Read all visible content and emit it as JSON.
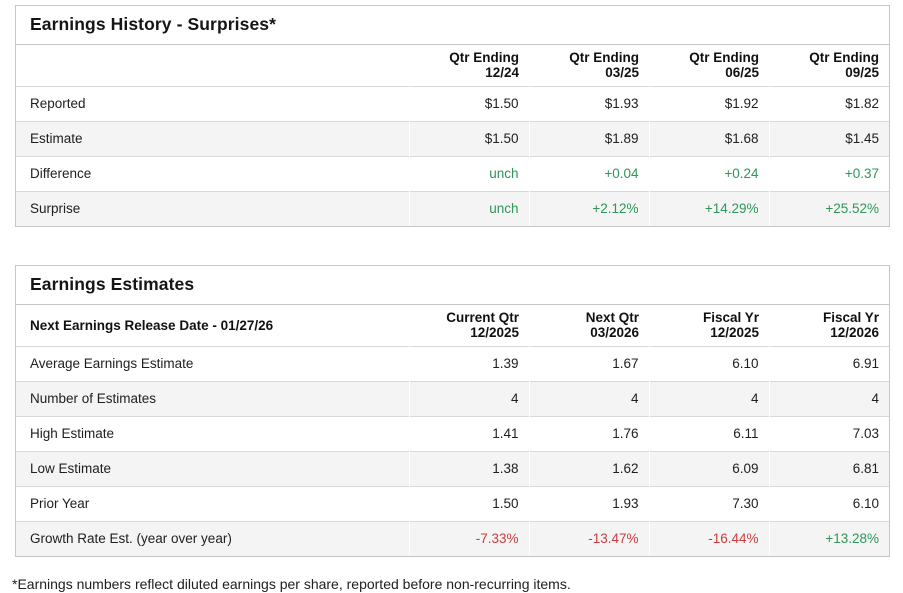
{
  "colors": {
    "accent_green": "#2e9659",
    "accent_red": "#cc3d3d",
    "row_alt": "#f4f4f4",
    "border": "#c6c6c6",
    "row_line": "#d8d8d8",
    "text": "#202020"
  },
  "tables": [
    {
      "title": "Earnings History - Surprises*",
      "header_label": "",
      "columns": [
        "Qtr Ending\n12/24",
        "Qtr Ending\n03/25",
        "Qtr Ending\n06/25",
        "Qtr Ending\n09/25"
      ],
      "rows": [
        {
          "label": "Reported",
          "values": [
            "$1.50",
            "$1.93",
            "$1.92",
            "$1.82"
          ]
        },
        {
          "label": "Estimate",
          "values": [
            "$1.50",
            "$1.89",
            "$1.68",
            "$1.45"
          ]
        },
        {
          "label": "Difference",
          "values": [
            "unch",
            "+0.04",
            "+0.24",
            "+0.37"
          ],
          "value_colors": [
            "green",
            "green",
            "green",
            "green"
          ]
        },
        {
          "label": "Surprise",
          "values": [
            "unch",
            "+2.12%",
            "+14.29%",
            "+25.52%"
          ],
          "value_colors": [
            "green",
            "green",
            "green",
            "green"
          ]
        }
      ]
    },
    {
      "title": "Earnings Estimates",
      "header_label": "Next Earnings Release Date - 01/27/26",
      "columns": [
        "Current Qtr\n12/2025",
        "Next Qtr\n03/2026",
        "Fiscal Yr\n12/2025",
        "Fiscal Yr\n12/2026"
      ],
      "rows": [
        {
          "label": "Average Earnings Estimate",
          "values": [
            "1.39",
            "1.67",
            "6.10",
            "6.91"
          ]
        },
        {
          "label": "Number of Estimates",
          "values": [
            "4",
            "4",
            "4",
            "4"
          ]
        },
        {
          "label": "High Estimate",
          "values": [
            "1.41",
            "1.76",
            "6.11",
            "7.03"
          ]
        },
        {
          "label": "Low Estimate",
          "values": [
            "1.38",
            "1.62",
            "6.09",
            "6.81"
          ]
        },
        {
          "label": "Prior Year",
          "values": [
            "1.50",
            "1.93",
            "7.30",
            "6.10"
          ]
        },
        {
          "label": "Growth Rate Est. (year over year)",
          "values": [
            "-7.33%",
            "-13.47%",
            "-16.44%",
            "+13.28%"
          ],
          "value_colors": [
            "red",
            "red",
            "red",
            "green"
          ]
        }
      ]
    }
  ],
  "footnote": "*Earnings numbers reflect diluted earnings per share, reported before non-recurring items."
}
